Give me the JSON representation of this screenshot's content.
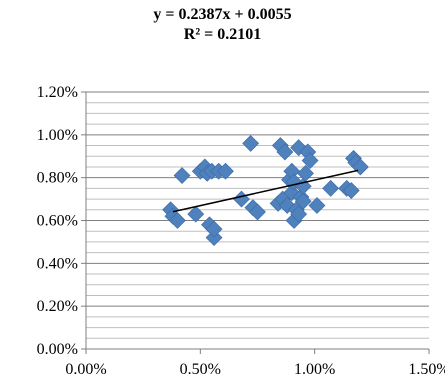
{
  "chart_data": {
    "type": "scatter",
    "title_lines": [
      "y = 0.2387x + 0.0055",
      "R² = 0.2101"
    ],
    "xlabel": "",
    "ylabel": "",
    "xlim": [
      0,
      0.015
    ],
    "ylim": [
      0,
      0.012
    ],
    "x_ticks": [
      0,
      0.005,
      0.01,
      0.015
    ],
    "x_tick_labels": [
      "0.00%",
      "0.50%",
      "1.00%",
      "1.50%"
    ],
    "y_ticks": [
      0,
      0.002,
      0.004,
      0.006,
      0.008,
      0.01,
      0.012
    ],
    "y_tick_labels": [
      "0.00%",
      "0.20%",
      "0.40%",
      "0.60%",
      "0.80%",
      "1.00%",
      "1.20%"
    ],
    "grid": true,
    "legend": "none",
    "marker": "diamond",
    "marker_color": "#4F81BD",
    "trendline": {
      "slope": 0.2387,
      "intercept": 0.0055,
      "x_range": [
        0.0038,
        0.0119
      ],
      "color": "#000000"
    },
    "points": [
      [
        0.0037,
        0.0065
      ],
      [
        0.0038,
        0.0062
      ],
      [
        0.004,
        0.006
      ],
      [
        0.0042,
        0.0081
      ],
      [
        0.0048,
        0.0063
      ],
      [
        0.005,
        0.0083
      ],
      [
        0.0052,
        0.0085
      ],
      [
        0.0053,
        0.0082
      ],
      [
        0.0054,
        0.0058
      ],
      [
        0.0055,
        0.0083
      ],
      [
        0.0056,
        0.0052
      ],
      [
        0.0056,
        0.0056
      ],
      [
        0.0058,
        0.0083
      ],
      [
        0.0061,
        0.0083
      ],
      [
        0.0068,
        0.007
      ],
      [
        0.0072,
        0.0096
      ],
      [
        0.0073,
        0.0066
      ],
      [
        0.0075,
        0.0064
      ],
      [
        0.0084,
        0.0068
      ],
      [
        0.0085,
        0.0095
      ],
      [
        0.0086,
        0.007
      ],
      [
        0.0087,
        0.0092
      ],
      [
        0.0088,
        0.0067
      ],
      [
        0.0089,
        0.0079
      ],
      [
        0.009,
        0.0073
      ],
      [
        0.009,
        0.0083
      ],
      [
        0.0091,
        0.006
      ],
      [
        0.0091,
        0.0078
      ],
      [
        0.0092,
        0.0065
      ],
      [
        0.0093,
        0.0063
      ],
      [
        0.0093,
        0.0094
      ],
      [
        0.0094,
        0.0071
      ],
      [
        0.0095,
        0.0069
      ],
      [
        0.0095,
        0.0076
      ],
      [
        0.0096,
        0.0082
      ],
      [
        0.0097,
        0.0092
      ],
      [
        0.0098,
        0.0088
      ],
      [
        0.0101,
        0.0067
      ],
      [
        0.0107,
        0.0075
      ],
      [
        0.0114,
        0.0075
      ],
      [
        0.0116,
        0.0074
      ],
      [
        0.0117,
        0.0089
      ],
      [
        0.0118,
        0.0087
      ],
      [
        0.012,
        0.0085
      ]
    ]
  }
}
